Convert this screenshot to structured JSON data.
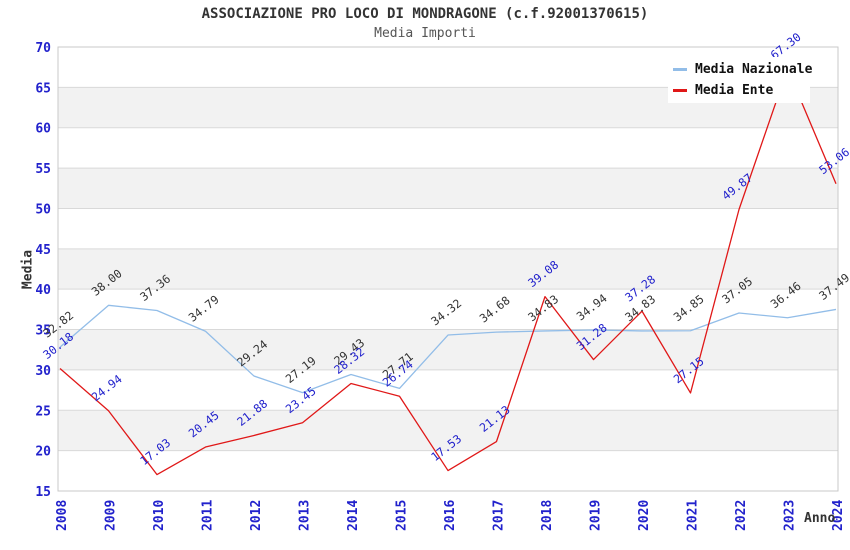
{
  "header": {
    "title": "ASSOCIAZIONE PRO LOCO DI MONDRAGONE (c.f.92001370615)",
    "subtitle": "Media Importi"
  },
  "chart_data": {
    "type": "line",
    "title": "ASSOCIAZIONE PRO LOCO DI MONDRAGONE (c.f.92001370615)",
    "subtitle": "Media Importi",
    "xlabel": "Anno",
    "ylabel": "Media",
    "ylim": [
      15,
      70
    ],
    "ytick_step": 5,
    "yticks": [
      15,
      20,
      25,
      30,
      35,
      40,
      45,
      50,
      55,
      60,
      65,
      70
    ],
    "categories": [
      "2008",
      "2009",
      "2010",
      "2011",
      "2012",
      "2013",
      "2014",
      "2015",
      "2016",
      "2017",
      "2018",
      "2019",
      "2020",
      "2021",
      "2022",
      "2023",
      "2024"
    ],
    "series": [
      {
        "name": "Media Nazionale",
        "color": "#92bde8",
        "label_color": "#333333",
        "values": [
          32.82,
          38.0,
          37.36,
          34.79,
          29.24,
          27.19,
          29.43,
          27.71,
          34.32,
          34.68,
          34.83,
          34.94,
          34.83,
          34.85,
          37.05,
          36.46,
          37.49
        ]
      },
      {
        "name": "Media Ente",
        "color": "#e01818",
        "label_color": "#2222cc",
        "values": [
          30.18,
          24.94,
          17.03,
          20.45,
          21.88,
          23.45,
          28.32,
          26.74,
          17.53,
          21.13,
          39.08,
          31.28,
          37.28,
          27.15,
          49.87,
          67.3,
          53.06
        ]
      }
    ],
    "legend_position": "top-right",
    "grid": "horizontal-bands",
    "band_color": "#f2f2f2",
    "gridline_color": "#d9d9d9",
    "axis_tick_color": "#2222cc"
  }
}
